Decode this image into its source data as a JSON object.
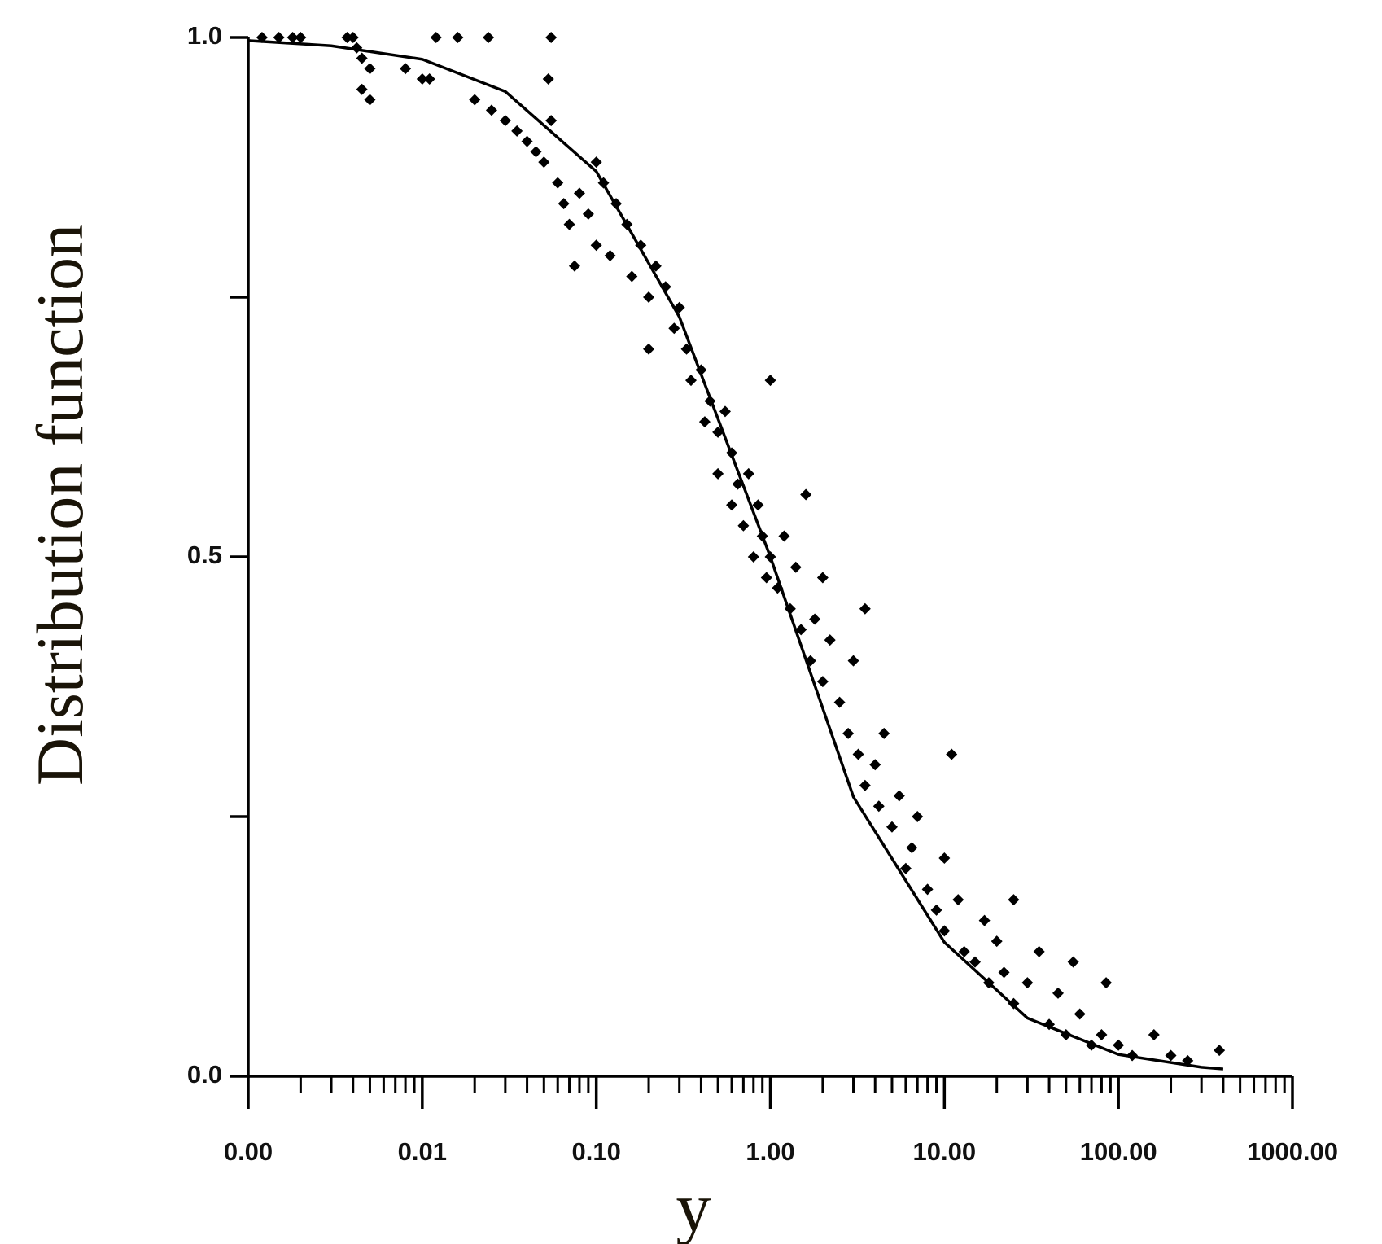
{
  "chart_data": {
    "type": "scatter",
    "x_label": "y",
    "y_label": "Distribution function",
    "x_log": true,
    "xlim": [
      0.001,
      1000
    ],
    "xticks": [
      {
        "value": 0.001,
        "label": "0.00"
      },
      0.01,
      {
        "value": 0.1,
        "label": "0.10"
      },
      {
        "value": 1,
        "label": "1.00"
      },
      {
        "value": 10,
        "label": "10.00"
      },
      {
        "value": 100,
        "label": "100.00"
      },
      {
        "value": 1000,
        "label": "1000.00"
      }
    ],
    "xminorticks": [
      0.002,
      0.003,
      0.004,
      0.005,
      0.006,
      0.007,
      0.008,
      0.009,
      0.02,
      0.03,
      0.04,
      0.05,
      0.06,
      0.07,
      0.08,
      0.09,
      0.2,
      0.3,
      0.4,
      0.5,
      0.6,
      0.7,
      0.8,
      0.9,
      2,
      3,
      4,
      5,
      6,
      7,
      8,
      9,
      20,
      30,
      40,
      50,
      60,
      70,
      80,
      90,
      200,
      300,
      400,
      500,
      600,
      700,
      800,
      900
    ],
    "ylim": [
      0,
      1
    ],
    "yticks": [
      {
        "value": 0,
        "label": "0.0"
      },
      0.5,
      {
        "value": 1,
        "label": "1.0"
      }
    ],
    "yminorticks": [
      0.25,
      0.75
    ],
    "series": [
      {
        "type": "scatter",
        "marker": "diamond",
        "color": "#000000",
        "x": [
          0.0012,
          0.0015,
          0.0018,
          0.002,
          0.0037,
          0.004,
          0.0042,
          0.0045,
          0.005,
          0.005,
          0.0045,
          0.008,
          0.01,
          0.011,
          0.012,
          0.016,
          0.024,
          0.055,
          0.053,
          0.02,
          0.025,
          0.03,
          0.035,
          0.04,
          0.045,
          0.05,
          0.06,
          0.055,
          0.065,
          0.07,
          0.075,
          0.08,
          0.09,
          0.1,
          0.1,
          0.11,
          0.12,
          0.13,
          0.15,
          0.16,
          0.18,
          0.2,
          0.2,
          0.22,
          0.25,
          0.28,
          0.3,
          0.33,
          0.35,
          0.4,
          0.42,
          0.45,
          0.5,
          0.5,
          0.55,
          0.6,
          0.6,
          0.65,
          0.7,
          0.75,
          0.8,
          0.85,
          0.9,
          0.95,
          1.0,
          1.0,
          1.1,
          1.2,
          1.3,
          1.4,
          1.5,
          1.6,
          1.7,
          1.8,
          2.0,
          2.0,
          2.2,
          2.5,
          2.8,
          3.0,
          3.2,
          3.5,
          3.5,
          4.0,
          4.2,
          4.5,
          5.0,
          5.5,
          6.0,
          6.5,
          7.0,
          8.0,
          9.0,
          10,
          10,
          11,
          12,
          13,
          15,
          17,
          18,
          20,
          22,
          25,
          25,
          30,
          35,
          40,
          45,
          50,
          55,
          60,
          70,
          80,
          85,
          100,
          120,
          160,
          200,
          250,
          380
        ],
        "values": [
          1.0,
          1.0,
          1.0,
          1.0,
          1.0,
          1.0,
          0.99,
          0.98,
          0.97,
          0.94,
          0.95,
          0.97,
          0.96,
          0.96,
          1.0,
          1.0,
          1.0,
          1.0,
          0.96,
          0.94,
          0.93,
          0.92,
          0.91,
          0.9,
          0.89,
          0.88,
          0.86,
          0.92,
          0.84,
          0.82,
          0.78,
          0.85,
          0.83,
          0.8,
          0.88,
          0.86,
          0.79,
          0.84,
          0.82,
          0.77,
          0.8,
          0.75,
          0.7,
          0.78,
          0.76,
          0.72,
          0.74,
          0.7,
          0.67,
          0.68,
          0.63,
          0.65,
          0.62,
          0.58,
          0.64,
          0.6,
          0.55,
          0.57,
          0.53,
          0.58,
          0.5,
          0.55,
          0.52,
          0.48,
          0.67,
          0.5,
          0.47,
          0.52,
          0.45,
          0.49,
          0.43,
          0.56,
          0.4,
          0.44,
          0.38,
          0.48,
          0.42,
          0.36,
          0.33,
          0.4,
          0.31,
          0.45,
          0.28,
          0.3,
          0.26,
          0.33,
          0.24,
          0.27,
          0.2,
          0.22,
          0.25,
          0.18,
          0.16,
          0.21,
          0.14,
          0.31,
          0.17,
          0.12,
          0.11,
          0.15,
          0.09,
          0.13,
          0.1,
          0.07,
          0.17,
          0.09,
          0.12,
          0.05,
          0.08,
          0.04,
          0.11,
          0.06,
          0.03,
          0.04,
          0.09,
          0.03,
          0.02,
          0.04,
          0.02,
          0.015,
          0.025
        ]
      },
      {
        "type": "line",
        "color": "#000000",
        "x": [
          0.001,
          0.003,
          0.01,
          0.03,
          0.1,
          0.3,
          1,
          3,
          10,
          30,
          100,
          300,
          400
        ],
        "values": [
          0.997,
          0.992,
          0.979,
          0.948,
          0.871,
          0.731,
          0.5,
          0.269,
          0.129,
          0.056,
          0.021,
          0.0087,
          0.007
        ]
      }
    ]
  }
}
